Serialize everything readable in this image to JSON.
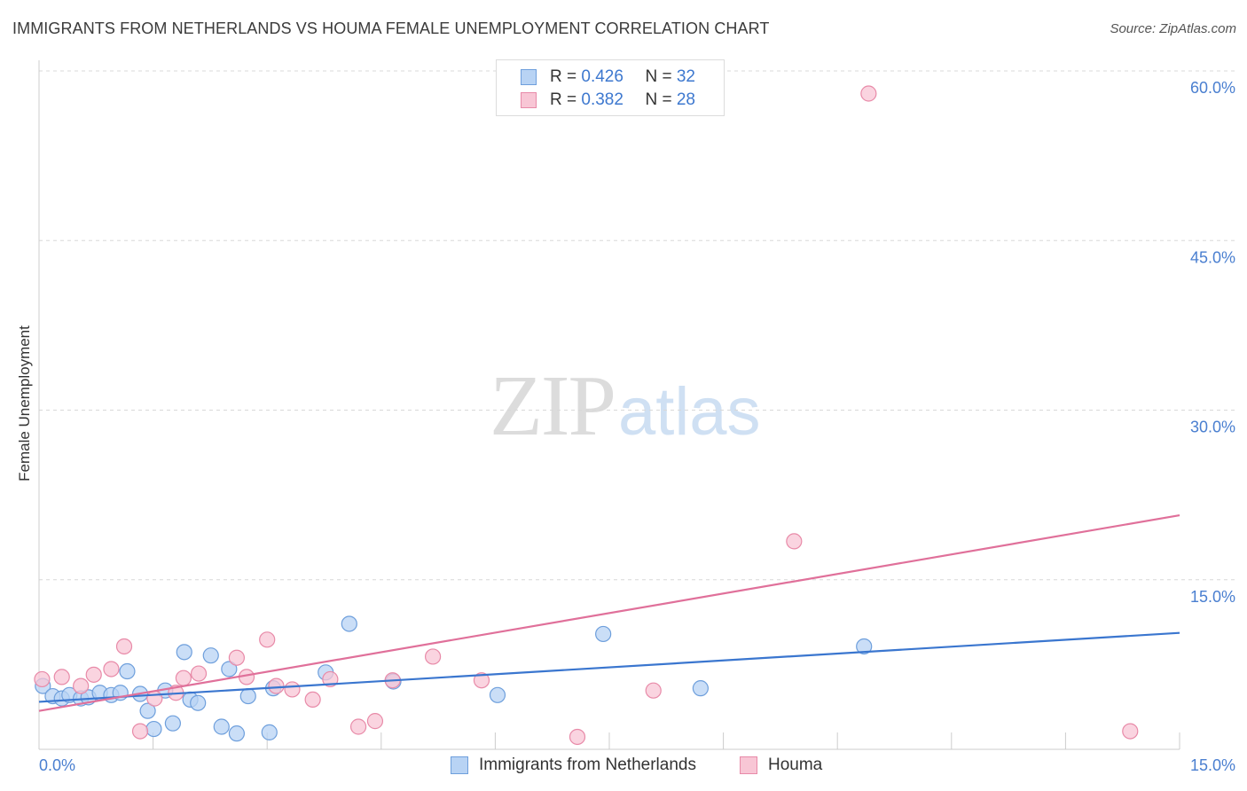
{
  "title": "IMMIGRANTS FROM NETHERLANDS VS HOUMA FEMALE UNEMPLOYMENT CORRELATION CHART",
  "source": "Source: ZipAtlas.com",
  "watermark": {
    "zip": "ZIP",
    "atlas": "atlas"
  },
  "legend": {
    "rows": [
      {
        "r_label": "R = ",
        "r_value": "0.426",
        "n_label": "N = ",
        "n_value": "32"
      },
      {
        "r_label": "R = ",
        "r_value": "0.382",
        "n_label": "N = ",
        "n_value": "28"
      }
    ]
  },
  "bottom_legend": [
    "Immigrants from Netherlands",
    "Houma"
  ],
  "colors": {
    "blue_fill": "#b8d3f4",
    "blue_stroke": "#6e9fdc",
    "blue_line": "#3a76cf",
    "pink_fill": "#f8c6d5",
    "pink_stroke": "#e88aa8",
    "pink_line": "#e0709a",
    "tick_text": "#4a7fd0",
    "grid": "#d8d8d8"
  },
  "chart_data": {
    "type": "scatter",
    "title": "IMMIGRANTS FROM NETHERLANDS VS HOUMA FEMALE UNEMPLOYMENT CORRELATION CHART",
    "xlabel": "",
    "ylabel": "Female Unemployment",
    "xlim": [
      0,
      15
    ],
    "ylim": [
      0,
      60
    ],
    "x_ticks": [
      "0.0%",
      "15.0%"
    ],
    "y_ticks": [
      {
        "value": 15,
        "label": "15.0%"
      },
      {
        "value": 30,
        "label": "30.0%"
      },
      {
        "value": 45,
        "label": "45.0%"
      },
      {
        "value": 60,
        "label": "60.0%"
      }
    ],
    "grid": true,
    "legend_placement": "top-center",
    "series": [
      {
        "name": "Immigrants from Netherlands",
        "r": 0.426,
        "n": 32,
        "points": [
          [
            0.05,
            5.6
          ],
          [
            0.18,
            4.7
          ],
          [
            0.3,
            4.5
          ],
          [
            0.4,
            4.8
          ],
          [
            0.55,
            4.5
          ],
          [
            0.65,
            4.6
          ],
          [
            0.8,
            5.0
          ],
          [
            0.95,
            4.8
          ],
          [
            1.07,
            5.0
          ],
          [
            1.16,
            6.9
          ],
          [
            1.33,
            4.9
          ],
          [
            1.43,
            3.4
          ],
          [
            1.51,
            1.8
          ],
          [
            1.66,
            5.2
          ],
          [
            1.76,
            2.3
          ],
          [
            1.91,
            8.6
          ],
          [
            1.99,
            4.4
          ],
          [
            2.09,
            4.1
          ],
          [
            2.26,
            8.3
          ],
          [
            2.4,
            2.0
          ],
          [
            2.5,
            7.1
          ],
          [
            2.6,
            1.4
          ],
          [
            2.75,
            4.7
          ],
          [
            3.08,
            5.4
          ],
          [
            3.03,
            1.5
          ],
          [
            3.77,
            6.8
          ],
          [
            4.08,
            11.1
          ],
          [
            4.66,
            6.0
          ],
          [
            6.03,
            4.8
          ],
          [
            7.42,
            10.2
          ],
          [
            8.7,
            5.4
          ],
          [
            10.85,
            9.1
          ]
        ],
        "trend": {
          "x": [
            0,
            15
          ],
          "y": [
            4.2,
            10.3
          ]
        }
      },
      {
        "name": "Houma",
        "r": 0.382,
        "n": 28,
        "points": [
          [
            0.04,
            6.2
          ],
          [
            0.3,
            6.4
          ],
          [
            0.55,
            5.6
          ],
          [
            0.72,
            6.6
          ],
          [
            0.95,
            7.1
          ],
          [
            1.12,
            9.1
          ],
          [
            1.33,
            1.6
          ],
          [
            1.52,
            4.5
          ],
          [
            1.8,
            5.0
          ],
          [
            1.9,
            6.3
          ],
          [
            2.1,
            6.7
          ],
          [
            2.6,
            8.1
          ],
          [
            2.73,
            6.4
          ],
          [
            3.0,
            9.7
          ],
          [
            3.12,
            5.6
          ],
          [
            3.33,
            5.3
          ],
          [
            3.6,
            4.4
          ],
          [
            3.83,
            6.2
          ],
          [
            4.2,
            2.0
          ],
          [
            4.42,
            2.5
          ],
          [
            4.65,
            6.1
          ],
          [
            5.18,
            8.2
          ],
          [
            5.82,
            6.1
          ],
          [
            7.08,
            1.1
          ],
          [
            8.08,
            5.2
          ],
          [
            9.93,
            18.4
          ],
          [
            10.91,
            58.0
          ],
          [
            14.35,
            1.6
          ]
        ],
        "trend": {
          "x": [
            0,
            15
          ],
          "y": [
            3.4,
            20.7
          ]
        }
      }
    ]
  }
}
